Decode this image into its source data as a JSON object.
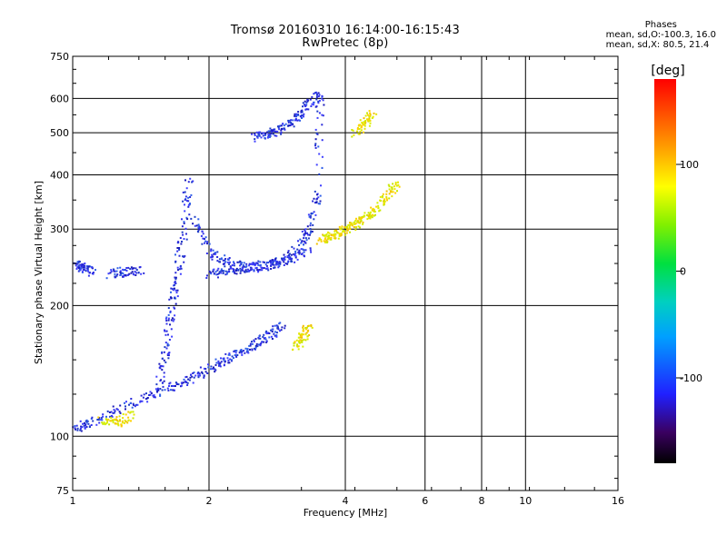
{
  "header": {
    "title": "Tromsø 20160310 16:14:00-16:15:43",
    "subtitle": "RwPretec (8p)"
  },
  "phases": {
    "heading": "Phases",
    "line_o": "mean, sd,O:-100.3, 16.0",
    "line_x": "mean, sd,X: 80.5, 21.4"
  },
  "colorbar": {
    "label": "[deg]",
    "ticks": [
      "100",
      "0",
      "-100"
    ]
  },
  "chart_data": {
    "type": "scatter",
    "title": "Tromsø 20160310 16:14:00-16:15:43",
    "subtitle": "RwPretec (8p)",
    "xlabel": "Frequency [MHz]",
    "ylabel": "Stationary phase Virtual Height [km]",
    "x_scale": "log",
    "y_scale": "log",
    "xlim": [
      1,
      16
    ],
    "ylim": [
      75,
      750
    ],
    "x_ticks": [
      "1",
      "2",
      "4",
      "6",
      "8",
      "10",
      "16"
    ],
    "y_ticks": [
      "75",
      "100",
      "200",
      "300",
      "400",
      "500",
      "600",
      "750"
    ],
    "grid": true,
    "colorbar": {
      "label": "[deg]",
      "range": [
        -180,
        180
      ],
      "ticks": [
        100,
        0,
        -100
      ]
    },
    "series": [
      {
        "name": "O",
        "color": "#2a2ad8",
        "traces": [
          {
            "freq": [
              1.0,
              1.1,
              1.3,
              1.5,
              1.7,
              1.9,
              2.1,
              2.3,
              2.5,
              2.7,
              2.9
            ],
            "height": [
              105,
              108,
              118,
              125,
              132,
              140,
              148,
              155,
              163,
              172,
              180
            ]
          },
          {
            "freq": [
              1.55,
              1.6,
              1.65,
              1.7,
              1.75,
              1.8
            ],
            "height": [
              130,
              160,
              200,
              240,
              300,
              390
            ]
          },
          {
            "freq": [
              1.85,
              2.0,
              2.2,
              2.5,
              2.8,
              3.1,
              3.3,
              3.45,
              3.5
            ],
            "height": [
              320,
              265,
              250,
              245,
              250,
              270,
              300,
              360,
              600
            ]
          },
          {
            "freq": [
              2.0,
              2.2,
              2.4,
              2.7,
              3.0,
              3.3
            ],
            "height": [
              238,
              242,
              245,
              250,
              258,
              270
            ]
          },
          {
            "freq": [
              2.5,
              2.7,
              2.9,
              3.1,
              3.3,
              3.5
            ],
            "height": [
              490,
              500,
              515,
              540,
              580,
              620
            ]
          },
          {
            "freq": [
              1.2,
              1.3,
              1.4
            ],
            "height": [
              238,
              240,
              242
            ]
          },
          {
            "freq": [
              1.02,
              1.05,
              1.1
            ],
            "height": [
              250,
              245,
              240
            ]
          }
        ]
      },
      {
        "name": "X",
        "color": "#e0e000",
        "traces": [
          {
            "freq": [
              3.5,
              3.7,
              3.9,
              4.1,
              4.3,
              4.6,
              4.9,
              5.2
            ],
            "height": [
              285,
              290,
              298,
              305,
              315,
              330,
              355,
              390
            ]
          },
          {
            "freq": [
              4.2,
              4.4,
              4.6
            ],
            "height": [
              500,
              530,
              560
            ]
          },
          {
            "freq": [
              3.1,
              3.2,
              3.3
            ],
            "height": [
              160,
              170,
              180
            ]
          },
          {
            "freq": [
              1.15,
              1.25,
              1.35
            ],
            "height": [
              110,
              108,
              112
            ]
          }
        ]
      }
    ]
  }
}
